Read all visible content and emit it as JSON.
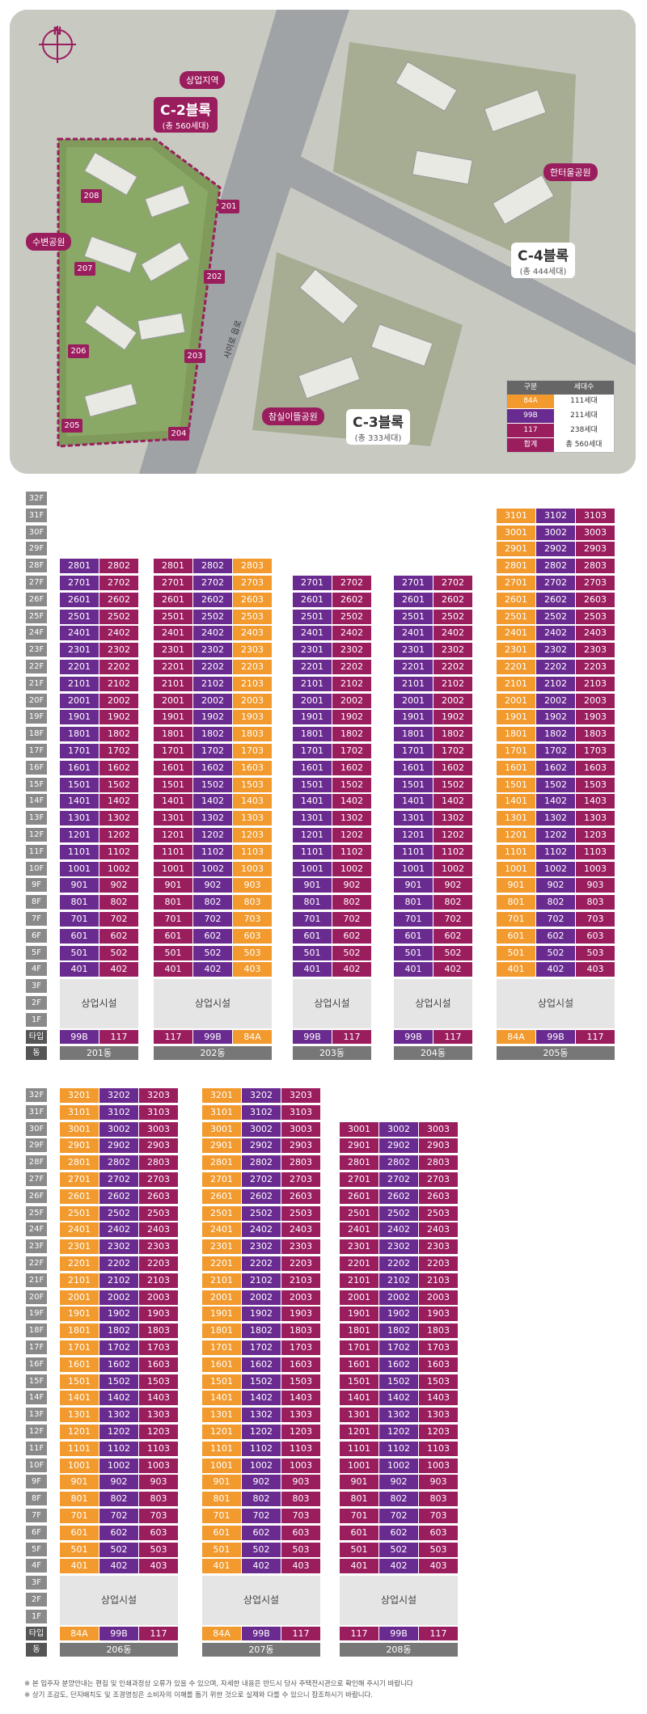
{
  "colors": {
    "84A": "#f29a2e",
    "99B": "#6a2b90",
    "117": "#9a1d5e",
    "floor": "#8a8a8a",
    "dong": "#777777"
  },
  "map": {
    "compass": "N",
    "labels": {
      "commercial_zone": "상업지역",
      "waterfront_park": "수변공원",
      "hanteul_park": "한터울공원",
      "chamsil_park": "참실이뜰공원",
      "road": "사이로 읍로"
    },
    "blocks": {
      "c2": {
        "title": "C-2블록",
        "sub": "(총 560세대)"
      },
      "c3": {
        "title": "C-3블록",
        "sub": "(총 333세대)"
      },
      "c4": {
        "title": "C-4블록",
        "sub": "(총 444세대)"
      }
    },
    "dongs": [
      "201",
      "202",
      "203",
      "204",
      "205",
      "206",
      "207",
      "208"
    ],
    "legend": {
      "header": {
        "k": "구분",
        "v": "세대수"
      },
      "rows": [
        {
          "k": "84A",
          "v": "111세대",
          "color": "#f29a2e"
        },
        {
          "k": "99B",
          "v": "211세대",
          "color": "#6a2b90"
        },
        {
          "k": "117",
          "v": "238세대",
          "color": "#9a1d5e"
        },
        {
          "k": "합계",
          "v": "총 560세대",
          "color": "#9a1d5e"
        }
      ]
    }
  },
  "labels": {
    "type": "타입",
    "dong": "동",
    "commercial": "상업시설"
  },
  "groups": [
    {
      "floors_max": 32,
      "buildings": [
        {
          "name": "201동",
          "types": [
            "99B",
            "117"
          ],
          "top": [
            28,
            28
          ]
        },
        {
          "name": "202동",
          "types": [
            "117",
            "99B",
            "84A"
          ],
          "top": [
            28,
            28,
            28
          ]
        },
        {
          "name": "203동",
          "types": [
            "99B",
            "117"
          ],
          "top": [
            27,
            27
          ]
        },
        {
          "name": "204동",
          "types": [
            "99B",
            "117"
          ],
          "top": [
            27,
            27
          ]
        },
        {
          "name": "205동",
          "types": [
            "84A",
            "99B",
            "117"
          ],
          "top": [
            31,
            31,
            31
          ]
        }
      ]
    },
    {
      "floors_max": 32,
      "buildings": [
        {
          "name": "206동",
          "types": [
            "84A",
            "99B",
            "117"
          ],
          "top": [
            32,
            32,
            32
          ]
        },
        {
          "name": "207동",
          "types": [
            "84A",
            "99B",
            "117"
          ],
          "top": [
            32,
            32,
            32
          ]
        },
        {
          "name": "208동",
          "types": [
            "117",
            "99B",
            "117"
          ],
          "top": [
            30,
            30,
            30
          ]
        }
      ]
    }
  ],
  "footnotes": [
    "※ 본 입주자 분양안내는 편집 및 인쇄과정상 오류가 있을 수 있으며, 자세한 내용은 반드시 당사 주택전시관으로 확인해 주시기 바랍니다",
    "※ 상기 조감도, 단지배치도 및 조경명칭은 소비자의 이해를 돕기 위한 것으로 실제와 다를 수 있으니 참조하시기 바랍니다."
  ]
}
